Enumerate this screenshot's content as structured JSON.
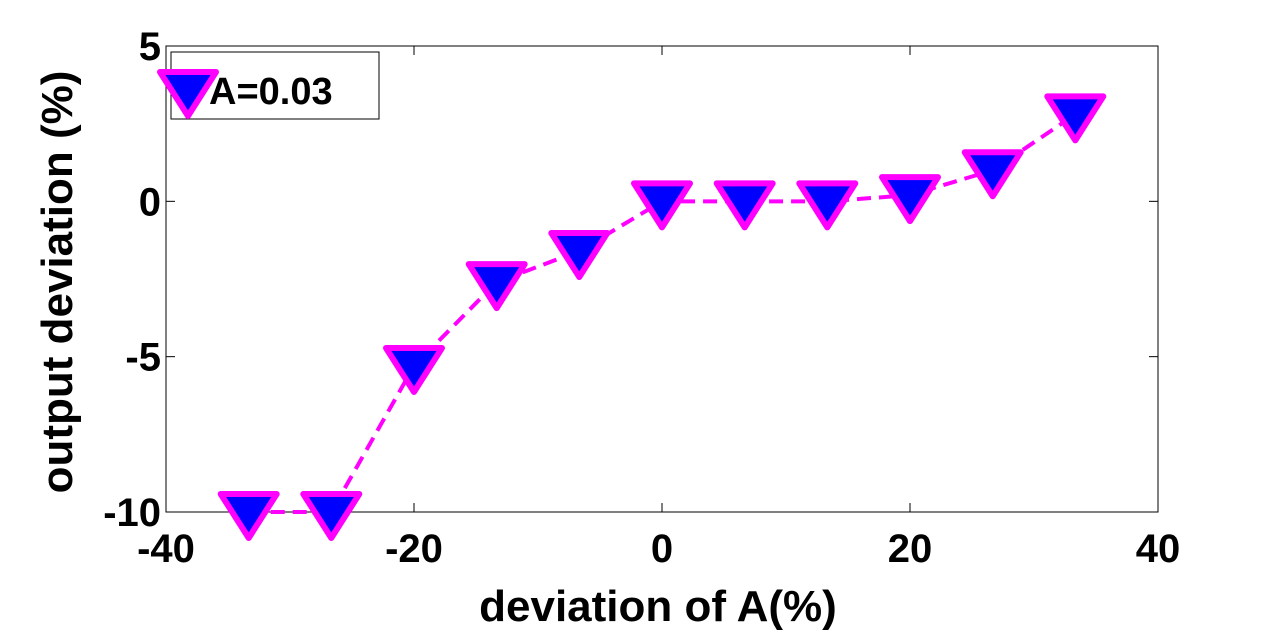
{
  "chart_data": {
    "type": "line",
    "title": "",
    "xlabel": "deviation of A(%)",
    "ylabel": "output deviation (%)",
    "xlim": [
      -40,
      40
    ],
    "ylim": [
      -10,
      5
    ],
    "xticks": [
      -40,
      -20,
      0,
      20,
      40
    ],
    "yticks": [
      -10,
      -5,
      0,
      5
    ],
    "grid": false,
    "legend_position": "top-left",
    "series": [
      {
        "name": "A=0.03",
        "line_color": "#ff00ff",
        "marker": "triangle-down",
        "marker_face": "#0000ff",
        "marker_edge": "#ff00ff",
        "line_style": "dashed",
        "x": [
          -33.33,
          -26.67,
          -20,
          -13.33,
          -6.67,
          0,
          6.67,
          13.33,
          20,
          26.67,
          33.33
        ],
        "y": [
          -10,
          -10,
          -5.3,
          -2.6,
          -1.6,
          0,
          0,
          0,
          0.2,
          1.0,
          2.8
        ]
      }
    ]
  }
}
